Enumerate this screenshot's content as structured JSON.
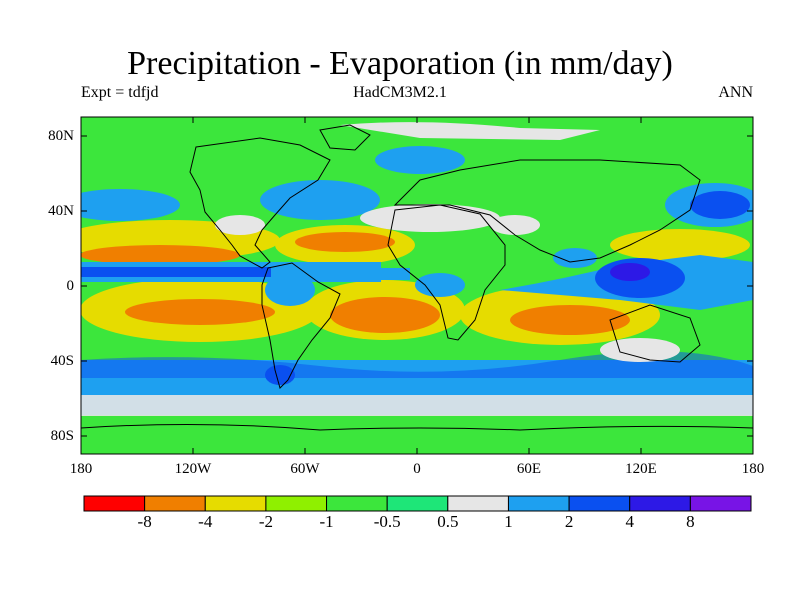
{
  "header": {
    "title": "Precipitation - Evaporation (in mm/day)",
    "experiment": "Expt = tdfjd",
    "model": "HadCM3M2.1",
    "period": "ANN"
  },
  "map": {
    "y_axis": [
      "80N",
      "40N",
      "0",
      "40S",
      "80S"
    ],
    "x_axis": [
      "180",
      "120W",
      "60W",
      "0",
      "60E",
      "120E",
      "180"
    ]
  },
  "colorbar": {
    "colors": [
      "#ff0000",
      "#f07f00",
      "#e6dc00",
      "#8ff000",
      "#3ce63c",
      "#1ee678",
      "#e6e6e6",
      "#1ea0f0",
      "#0a50f0",
      "#2d19e6",
      "#7814e6"
    ],
    "labels": [
      "-8",
      "-4",
      "-2",
      "-1",
      "-0.5",
      "0.5",
      "1",
      "2",
      "4",
      "8"
    ]
  },
  "chart_data": {
    "type": "heatmap",
    "title": "Precipitation - Evaporation (in mm/day)",
    "variable": "P - E",
    "units": "mm/day",
    "lon_range": [
      -180,
      180
    ],
    "lat_range": [
      -90,
      90
    ],
    "contour_levels": [
      -8,
      -4,
      -2,
      -1,
      -0.5,
      0.5,
      1,
      2,
      4,
      8
    ]
  }
}
